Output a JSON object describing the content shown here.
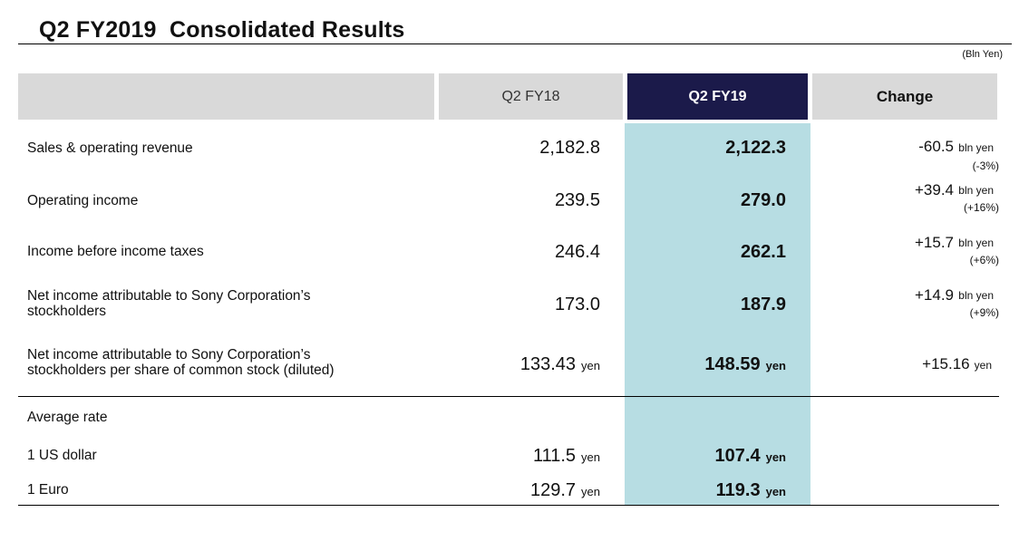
{
  "title": "Q2 FY2019  Consolidated Results",
  "unit_note": "(Bln Yen)",
  "columns": {
    "prev": "Q2 FY18",
    "curr": "Q2 FY19",
    "change": "Change"
  },
  "colors": {
    "header_gray": "#d9d9d9",
    "header_navy": "#1b1a4a",
    "highlight": "#b7dde3"
  },
  "rows": [
    {
      "label": "Sales & operating revenue",
      "prev": "2,182.8",
      "curr": "2,122.3",
      "change": "-60.5",
      "change_unit": "bln yen",
      "change_pct": "(-3%)"
    },
    {
      "label": "Operating income",
      "prev": "239.5",
      "curr": "279.0",
      "change": "+39.4",
      "change_unit": "bln yen",
      "change_pct": "(+16%)"
    },
    {
      "label": "Income before income taxes",
      "prev": "246.4",
      "curr": "262.1",
      "change": "+15.7",
      "change_unit": "bln yen",
      "change_pct": "(+6%)"
    },
    {
      "label_line1": "Net income attributable to Sony Corporation’s",
      "label_line2": "stockholders",
      "prev": "173.0",
      "curr": "187.9",
      "change": "+14.9",
      "change_unit": "bln yen",
      "change_pct": "(+9%)"
    },
    {
      "label_line1": "Net income attributable to Sony Corporation’s",
      "label_line2": "stockholders per share of common stock (diluted)",
      "prev": "133.43",
      "prev_unit": "yen",
      "curr": "148.59",
      "curr_unit": "yen",
      "change": "+15.16",
      "change_unit": "yen"
    }
  ],
  "average_rate": {
    "label": "Average rate",
    "usd": {
      "label": "1 US dollar",
      "prev": "111.5",
      "prev_unit": "yen",
      "curr": "107.4",
      "curr_unit": "yen"
    },
    "eur": {
      "label": "1 Euro",
      "prev": "129.7",
      "prev_unit": "yen",
      "curr": "119.3",
      "curr_unit": "yen"
    }
  }
}
